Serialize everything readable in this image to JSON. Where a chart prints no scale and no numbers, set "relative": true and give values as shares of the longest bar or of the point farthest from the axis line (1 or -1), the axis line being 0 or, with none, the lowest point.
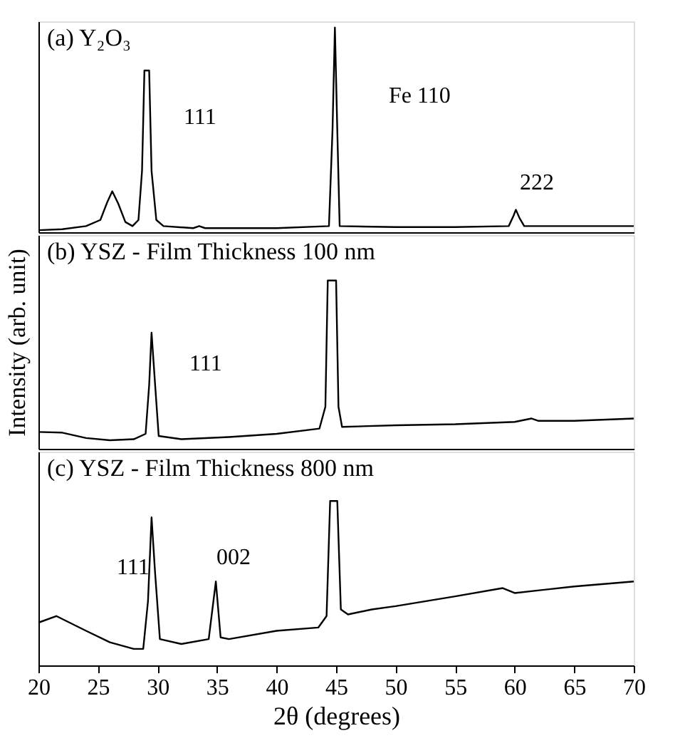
{
  "chart_data": [
    {
      "type": "line",
      "title": "(a) Y₂O₃",
      "relative": true,
      "color": "#000000",
      "xlim": [
        20,
        70
      ],
      "xticks": [
        20,
        25,
        30,
        35,
        40,
        45,
        50,
        55,
        60,
        65,
        70
      ],
      "tick_labels": false,
      "x": [
        20,
        22,
        24,
        25.2,
        25.8,
        26.2,
        26.7,
        27.3,
        27.9,
        28.4,
        28.7,
        28.9,
        29.3,
        29.5,
        29.9,
        30.5,
        33,
        33.5,
        34,
        40,
        44.4,
        44.7,
        44.9,
        45.1,
        45.3,
        50,
        55,
        59.5,
        59.9,
        60.1,
        60.4,
        60.8,
        65,
        70
      ],
      "values": [
        0.01,
        0.015,
        0.03,
        0.06,
        0.15,
        0.2,
        0.14,
        0.05,
        0.03,
        0.06,
        0.3,
        0.79,
        0.79,
        0.3,
        0.06,
        0.03,
        0.02,
        0.03,
        0.02,
        0.02,
        0.03,
        0.5,
        1,
        0.5,
        0.03,
        0.025,
        0.025,
        0.03,
        0.08,
        0.11,
        0.07,
        0.03,
        0.03,
        0.03
      ],
      "annotations": [
        "111",
        "Fe 110",
        "222"
      ]
    },
    {
      "type": "line",
      "title": "(b) YSZ - Film Thickness 100 nm",
      "relative": true,
      "color": "#000000",
      "xlim": [
        20,
        70
      ],
      "xticks": [
        20,
        25,
        30,
        35,
        40,
        45,
        50,
        55,
        60,
        65,
        70
      ],
      "tick_labels": false,
      "ylabel": "Intensity (arb. unit)",
      "x": [
        20,
        22,
        24,
        26,
        28,
        29,
        29.3,
        29.5,
        29.8,
        30.1,
        32,
        36,
        40,
        43.6,
        44.1,
        44.3,
        45,
        45.2,
        45.5,
        50,
        55,
        60,
        61.4,
        62,
        65,
        70
      ],
      "values": [
        0.1,
        0.096,
        0.064,
        0.051,
        0.057,
        0.089,
        0.38,
        0.69,
        0.38,
        0.076,
        0.057,
        0.07,
        0.089,
        0.12,
        0.25,
        1,
        1,
        0.25,
        0.13,
        0.14,
        0.146,
        0.16,
        0.18,
        0.166,
        0.166,
        0.18
      ],
      "annotations": [
        "111"
      ]
    },
    {
      "type": "line",
      "title": "(c) YSZ - Film Thickness 800 nm",
      "relative": true,
      "color": "#000000",
      "xlim": [
        20,
        70
      ],
      "xticks": [
        20,
        25,
        30,
        35,
        40,
        45,
        50,
        55,
        60,
        65,
        70
      ],
      "tick_labels": "x",
      "xlabel": "2θ (degrees)",
      "x": [
        20,
        21.5,
        24,
        26,
        28,
        28.8,
        29.2,
        29.5,
        29.8,
        30.2,
        32,
        34.3,
        34.9,
        35.3,
        36,
        40,
        43.5,
        44.2,
        44.5,
        45.1,
        45.4,
        46,
        48,
        50,
        55,
        59,
        60,
        65,
        70
      ],
      "values": [
        0.26,
        0.3,
        0.21,
        0.14,
        0.1,
        0.1,
        0.39,
        0.9,
        0.56,
        0.16,
        0.13,
        0.16,
        0.51,
        0.17,
        0.16,
        0.21,
        0.23,
        0.3,
        1,
        1,
        0.34,
        0.31,
        0.34,
        0.36,
        0.42,
        0.47,
        0.44,
        0.48,
        0.51
      ],
      "annotations": [
        "111",
        "002"
      ]
    }
  ]
}
